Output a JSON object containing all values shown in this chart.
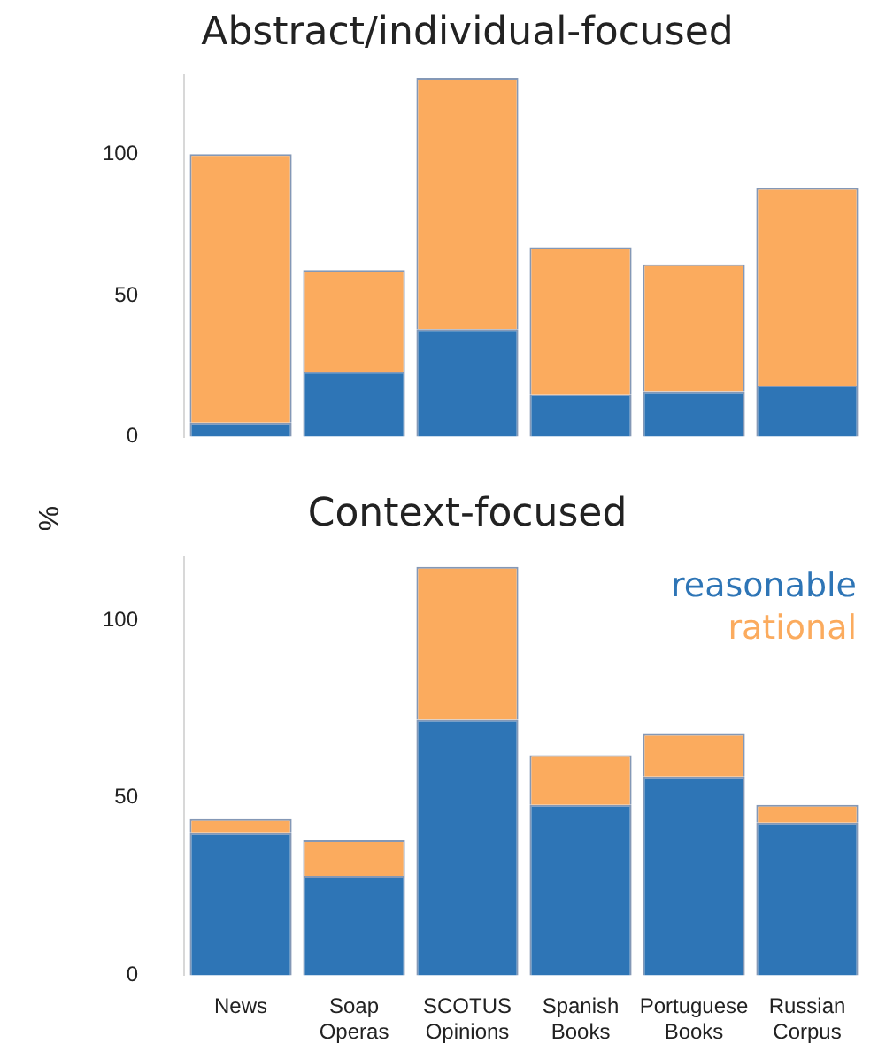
{
  "chart_data": [
    {
      "type": "bar",
      "title": "Abstract/individual-focused",
      "ylabel": "%",
      "categories": [
        null,
        null,
        null,
        null,
        null,
        null
      ],
      "stacked": true,
      "series": [
        {
          "color": "#2e75b6",
          "values": [
            5,
            23,
            38,
            15,
            16,
            18
          ]
        },
        {
          "color": "#fbab5e",
          "values": [
            95,
            36,
            89,
            52,
            45,
            70
          ]
        }
      ],
      "ylim": [
        0,
        128
      ],
      "yticks": [
        0,
        50,
        100
      ],
      "tick_labels": "y"
    },
    {
      "type": "bar",
      "title": "Context-focused",
      "categories": [
        "News",
        "Soap Operas",
        "SCOTUS Opinions",
        "Spanish Books",
        "Portuguese Books",
        "Russian Corpus"
      ],
      "stacked": true,
      "series": [
        {
          "name": "reasonable",
          "color": "#2e75b6",
          "values": [
            40,
            28,
            72,
            48,
            56,
            43
          ]
        },
        {
          "name": "rational",
          "color": "#fbab5e",
          "values": [
            4,
            10,
            43,
            14,
            12,
            5
          ]
        }
      ],
      "ylim": [
        0,
        118
      ],
      "yticks": [
        0,
        50,
        100
      ],
      "legend": "top right"
    }
  ]
}
